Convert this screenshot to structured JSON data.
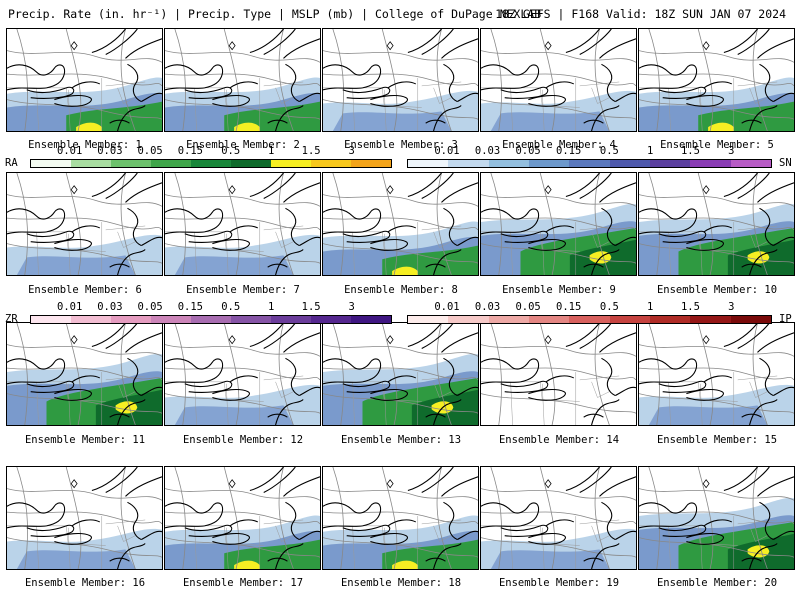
{
  "header": {
    "left": "Precip. Rate (in. hr⁻¹) | Precip. Type | MSLP (mb) | College of DuPage NEXLAB",
    "right": "18Z GEFS | F168 Valid: 18Z SUN JAN 07 2024"
  },
  "member_prefix": "Ensemble Member:",
  "members": [
    {
      "label": "Ensemble Member: 1",
      "intensity": "moderate"
    },
    {
      "label": "Ensemble Member: 2",
      "intensity": "moderate"
    },
    {
      "label": "Ensemble Member: 3",
      "intensity": "light"
    },
    {
      "label": "Ensemble Member: 4",
      "intensity": "light"
    },
    {
      "label": "Ensemble Member: 5",
      "intensity": "moderate"
    },
    {
      "label": "Ensemble Member: 6",
      "intensity": "light"
    },
    {
      "label": "Ensemble Member: 7",
      "intensity": "light"
    },
    {
      "label": "Ensemble Member: 8",
      "intensity": "moderate"
    },
    {
      "label": "Ensemble Member: 9",
      "intensity": "heavy"
    },
    {
      "label": "Ensemble Member: 10",
      "intensity": "heavy"
    },
    {
      "label": "Ensemble Member: 11",
      "intensity": "heavy"
    },
    {
      "label": "Ensemble Member: 12",
      "intensity": "light"
    },
    {
      "label": "Ensemble Member: 13",
      "intensity": "heavy"
    },
    {
      "label": "Ensemble Member: 14",
      "intensity": "none"
    },
    {
      "label": "Ensemble Member: 15",
      "intensity": "light"
    },
    {
      "label": "Ensemble Member: 16",
      "intensity": "light"
    },
    {
      "label": "Ensemble Member: 17",
      "intensity": "moderate"
    },
    {
      "label": "Ensemble Member: 18",
      "intensity": "moderate"
    },
    {
      "label": "Ensemble Member: 19",
      "intensity": "light"
    },
    {
      "label": "Ensemble Member: 20",
      "intensity": "heavy"
    }
  ],
  "legend_rain_snow": {
    "left_code": "RA",
    "right_code": "SN",
    "rain_ticks": [
      "0.01",
      "0.03",
      "0.05",
      "0.15",
      "0.5",
      "1",
      "1.5",
      "3"
    ],
    "snow_ticks": [
      "0.01",
      "0.03",
      "0.05",
      "0.15",
      "0.5",
      "1",
      "1.5",
      "3"
    ],
    "rain_colors": [
      "#f3fbf1",
      "#a8dda1",
      "#6cc16c",
      "#3fa64a",
      "#19873a",
      "#0f6b2c",
      "#f6ef23",
      "#f7c81d",
      "#f3a41a"
    ],
    "snow_colors": [
      "#eef5fb",
      "#c2d9ee",
      "#93bfdf",
      "#6d99cc",
      "#5a78bd",
      "#4e59ad",
      "#5b3f9f",
      "#8a3cb5",
      "#b85cc6"
    ]
  },
  "legend_zr_ip": {
    "left_code": "ZR",
    "right_code": "IP",
    "zr_ticks": [
      "0.01",
      "0.03",
      "0.05",
      "0.15",
      "0.5",
      "1",
      "1.5",
      "3"
    ],
    "ip_ticks": [
      "0.01",
      "0.03",
      "0.05",
      "0.15",
      "0.5",
      "1",
      "1.5",
      "3"
    ],
    "zr_colors": [
      "#fde6ef",
      "#f3bed3",
      "#e59cc0",
      "#cc85b9",
      "#a86db1",
      "#8654a6",
      "#6b3d9b",
      "#55278f",
      "#3f1682"
    ],
    "ip_colors": [
      "#fdeceb",
      "#f6c9c8",
      "#eea9a6",
      "#e48683",
      "#d8615e",
      "#c64340",
      "#b02c27",
      "#951717",
      "#7a0a0a"
    ]
  },
  "colors": {
    "rain": "#2f9a41",
    "rain_heavy": "#0f6b2c",
    "rain_extreme": "#f6ef23",
    "snow_light": "#a9c8e4",
    "snow": "#6e8fc7",
    "snow_heavy": "#5567b5",
    "mix": "#e6a8c8"
  }
}
